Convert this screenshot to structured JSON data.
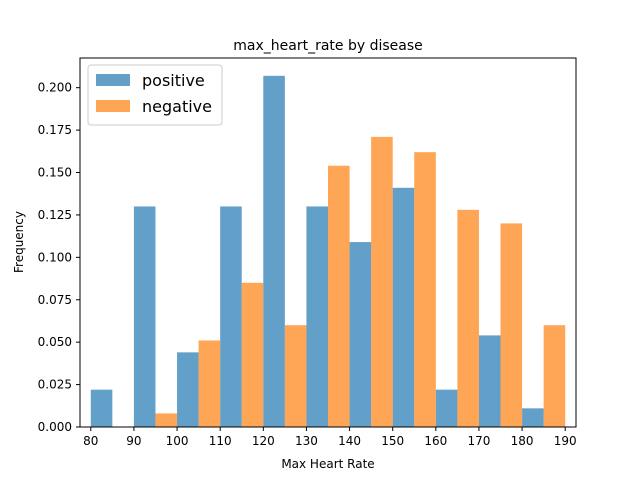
{
  "chart_data": {
    "type": "bar",
    "title": "max_heart_rate by disease",
    "xlabel": "Max Heart Rate",
    "ylabel": "Frequency",
    "xlim": [
      77.5,
      192.5
    ],
    "ylim": [
      0,
      0.2175
    ],
    "xticks": [
      80,
      90,
      100,
      110,
      120,
      130,
      140,
      150,
      160,
      170,
      180,
      190
    ],
    "xtick_labels": [
      "80",
      "90",
      "100",
      "110",
      "120",
      "130",
      "140",
      "150",
      "160",
      "170",
      "180",
      "190"
    ],
    "yticks": [
      0,
      0.025,
      0.05,
      0.075,
      0.1,
      0.125,
      0.15,
      0.175,
      0.2
    ],
    "ytick_labels": [
      "0.000",
      "0.025",
      "0.050",
      "0.075",
      "0.100",
      "0.125",
      "0.150",
      "0.175",
      "0.200"
    ],
    "bin_edges": [
      80,
      90,
      100,
      110,
      120,
      130,
      140,
      150,
      160,
      170,
      180,
      190
    ],
    "legend_position": "upper-left",
    "grid": false,
    "series": [
      {
        "name": "positive",
        "color": "#1f77b4",
        "alpha": 0.7,
        "values": [
          0.022,
          0.13,
          0.044,
          0.13,
          0.207,
          0.13,
          0.109,
          0.141,
          0.022,
          0.054,
          0.011
        ]
      },
      {
        "name": "negative",
        "color": "#ff7f0e",
        "alpha": 0.7,
        "values": [
          0.0,
          0.008,
          0.051,
          0.085,
          0.06,
          0.154,
          0.171,
          0.162,
          0.128,
          0.12,
          0.06
        ]
      }
    ]
  }
}
